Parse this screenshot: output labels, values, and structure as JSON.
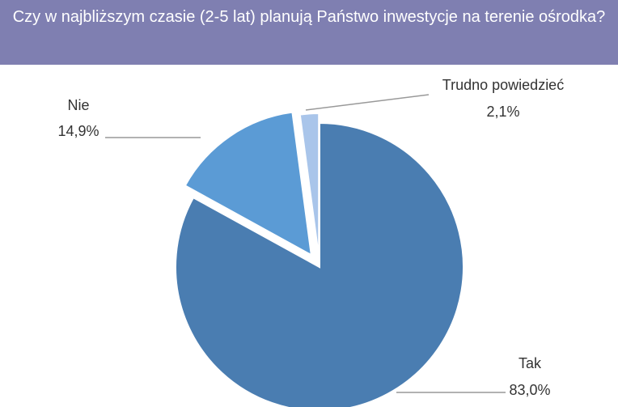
{
  "chart_data": {
    "type": "pie",
    "title": "Czy w najbliższym czasie (2-5 lat) planują Państwo inwestycje na terenie ośrodka?",
    "categories": [
      "Tak",
      "Nie",
      "Trudno powiedzieć"
    ],
    "values": [
      83.0,
      14.9,
      2.1
    ],
    "value_labels": [
      "83,0%",
      "14,9%",
      "2,1%"
    ],
    "colors": [
      "#4a7db1",
      "#5b9bd5",
      "#a9c5ea"
    ]
  }
}
